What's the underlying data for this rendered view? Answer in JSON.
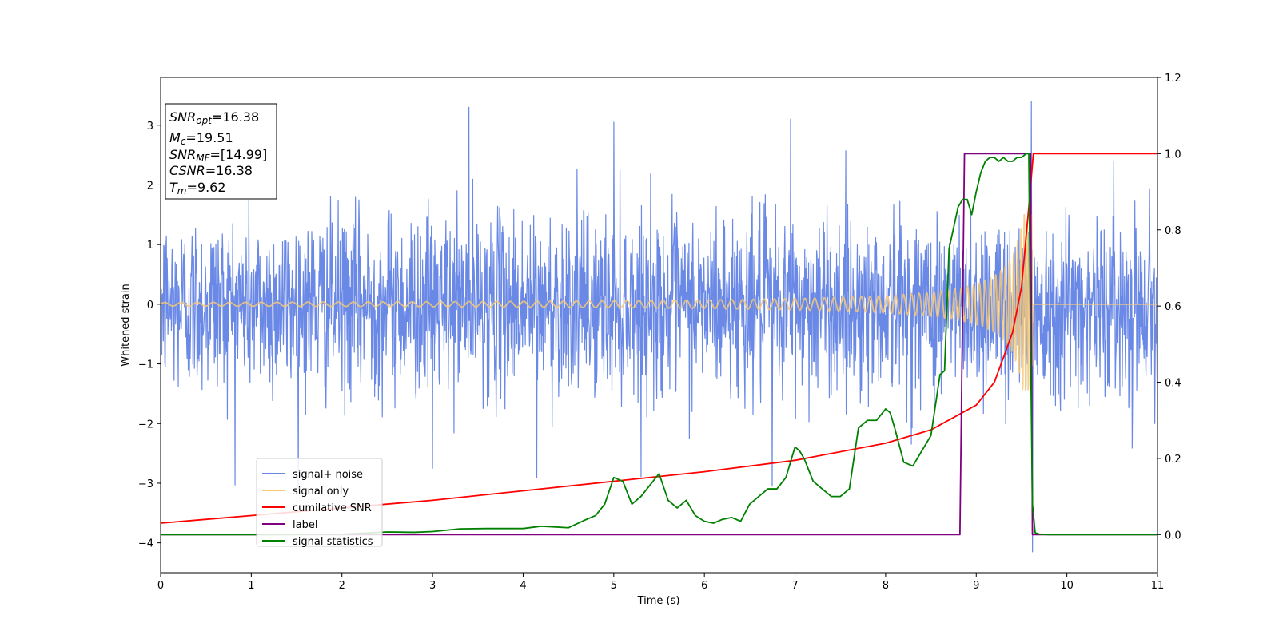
{
  "chart_data": {
    "type": "line",
    "xlabel": "Time (s)",
    "ylabel_left": "Whitened strain",
    "ylabel_right": "",
    "xlim": [
      0,
      11
    ],
    "ylim_left": [
      -4.5,
      3.8
    ],
    "ylim_right": [
      -0.1,
      1.2
    ],
    "x_ticks": [
      0,
      1,
      2,
      3,
      4,
      5,
      6,
      7,
      8,
      9,
      10,
      11
    ],
    "y_left_ticks": [
      -4,
      -3,
      -2,
      -1,
      0,
      1,
      2,
      3
    ],
    "y_right_ticks": [
      0.0,
      0.2,
      0.4,
      0.6,
      0.8,
      1.0,
      1.2
    ],
    "grid": false,
    "legend_position": "lower-left",
    "info_box": {
      "snr_opt": {
        "label": "SNR",
        "sub": "opt",
        "value": "=16.38"
      },
      "mc": {
        "label": "M",
        "sub": "c",
        "value": "=19.51"
      },
      "snr_mf": {
        "label": "SNR",
        "sub": "MF",
        "value": "=[14.99]"
      },
      "csnr": {
        "label": "CSNR",
        "sub": "",
        "value": "=16.38"
      },
      "tm": {
        "label": "T",
        "sub": "m",
        "value": "=9.62"
      }
    },
    "series": [
      {
        "name": "signal+ noise",
        "color": "#6a89e6",
        "axis": "left",
        "kind": "noise_band",
        "std": 0.75,
        "spikes": [
          [
            3.4,
            3.3
          ],
          [
            5.0,
            3.05
          ],
          [
            6.95,
            3.1
          ],
          [
            9.61,
            3.4
          ],
          [
            9.62,
            -4.15
          ],
          [
            4.15,
            -2.9
          ],
          [
            3.0,
            -2.75
          ],
          [
            6.75,
            -3.05
          ]
        ]
      },
      {
        "name": "signal only",
        "color": "#f5c878",
        "axis": "left",
        "kind": "chirp",
        "t_merge": 9.62,
        "amp_start": 0.03,
        "amp_peak": 1.5
      },
      {
        "name": "cumilative SNR",
        "color": "#ff0000",
        "axis": "right",
        "kind": "line",
        "x": [
          0,
          1,
          2,
          3,
          4,
          5,
          6,
          7,
          8,
          8.5,
          9,
          9.2,
          9.4,
          9.5,
          9.58,
          9.63,
          11
        ],
        "y": [
          0.03,
          0.05,
          0.07,
          0.09,
          0.115,
          0.14,
          0.165,
          0.195,
          0.24,
          0.275,
          0.34,
          0.4,
          0.53,
          0.65,
          0.86,
          1.0,
          1.0
        ]
      },
      {
        "name": "label",
        "color": "#800080",
        "axis": "right",
        "kind": "line",
        "x": [
          0,
          8.82,
          8.87,
          9.6,
          9.62,
          11
        ],
        "y": [
          0,
          0,
          1,
          1,
          0,
          0
        ]
      },
      {
        "name": "signal statistics",
        "color": "#008000",
        "axis": "right",
        "kind": "line",
        "x": [
          0,
          1,
          2,
          2.5,
          2.8,
          3.0,
          3.3,
          3.6,
          4.0,
          4.2,
          4.5,
          4.7,
          4.8,
          4.9,
          5.0,
          5.1,
          5.2,
          5.3,
          5.4,
          5.5,
          5.6,
          5.7,
          5.8,
          5.9,
          6.0,
          6.1,
          6.2,
          6.3,
          6.4,
          6.5,
          6.6,
          6.7,
          6.8,
          6.9,
          7.0,
          7.05,
          7.1,
          7.2,
          7.3,
          7.4,
          7.5,
          7.6,
          7.7,
          7.8,
          7.9,
          8.0,
          8.05,
          8.1,
          8.2,
          8.3,
          8.4,
          8.5,
          8.6,
          8.65,
          8.7,
          8.8,
          8.85,
          8.9,
          8.95,
          9.0,
          9.05,
          9.1,
          9.15,
          9.2,
          9.25,
          9.3,
          9.35,
          9.4,
          9.45,
          9.5,
          9.55,
          9.58,
          9.6,
          9.62,
          9.65,
          9.7,
          9.8,
          11
        ],
        "y": [
          0,
          0,
          0.001,
          0.007,
          0.006,
          0.008,
          0.015,
          0.016,
          0.016,
          0.022,
          0.018,
          0.04,
          0.05,
          0.08,
          0.15,
          0.14,
          0.08,
          0.1,
          0.13,
          0.16,
          0.09,
          0.07,
          0.09,
          0.05,
          0.035,
          0.03,
          0.04,
          0.045,
          0.035,
          0.08,
          0.1,
          0.12,
          0.12,
          0.15,
          0.23,
          0.22,
          0.2,
          0.14,
          0.12,
          0.1,
          0.1,
          0.12,
          0.28,
          0.3,
          0.3,
          0.33,
          0.32,
          0.28,
          0.19,
          0.18,
          0.22,
          0.26,
          0.42,
          0.43,
          0.75,
          0.86,
          0.88,
          0.88,
          0.84,
          0.9,
          0.95,
          0.98,
          0.99,
          0.99,
          0.98,
          0.99,
          0.98,
          0.98,
          0.99,
          0.99,
          1.0,
          1.0,
          0.5,
          0.08,
          0.005,
          0.001,
          0,
          0
        ]
      }
    ]
  }
}
